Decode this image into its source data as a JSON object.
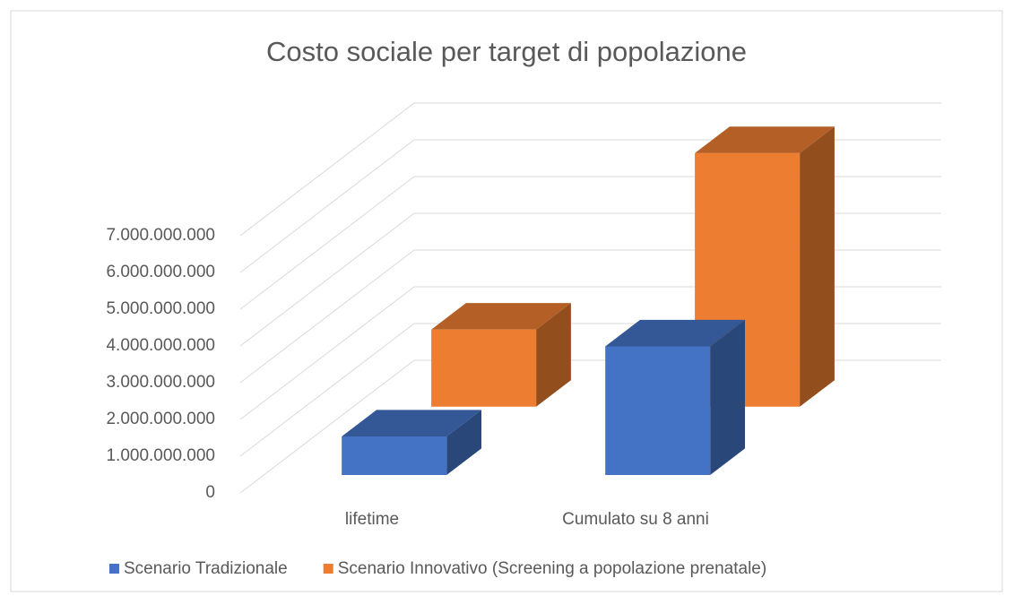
{
  "chart_data": {
    "type": "bar3d",
    "title": "Costo sociale per target di popolazione",
    "categories": [
      "lifetime",
      "Cumulato su 8 anni"
    ],
    "series": [
      {
        "name": "Scenario Tradizionale",
        "color": "#4472c4",
        "values": [
          1050000000,
          3500000000
        ]
      },
      {
        "name": "Scenario Innovativo (Screening a popolazione prenatale)",
        "color": "#ed7d31",
        "values": [
          2100000000,
          6900000000
        ]
      }
    ],
    "ylim": [
      0,
      7000000000
    ],
    "yticks": [
      {
        "value": 0,
        "label": "0"
      },
      {
        "value": 1000000000,
        "label": "1.000.000.000"
      },
      {
        "value": 2000000000,
        "label": "2.000.000.000"
      },
      {
        "value": 3000000000,
        "label": "3.000.000.000"
      },
      {
        "value": 4000000000,
        "label": "4.000.000.000"
      },
      {
        "value": 5000000000,
        "label": "5.000.000.000"
      },
      {
        "value": 6000000000,
        "label": "6.000.000.000"
      },
      {
        "value": 7000000000,
        "label": "7.000.000.000"
      }
    ],
    "grid": true,
    "legend": "bottom"
  }
}
